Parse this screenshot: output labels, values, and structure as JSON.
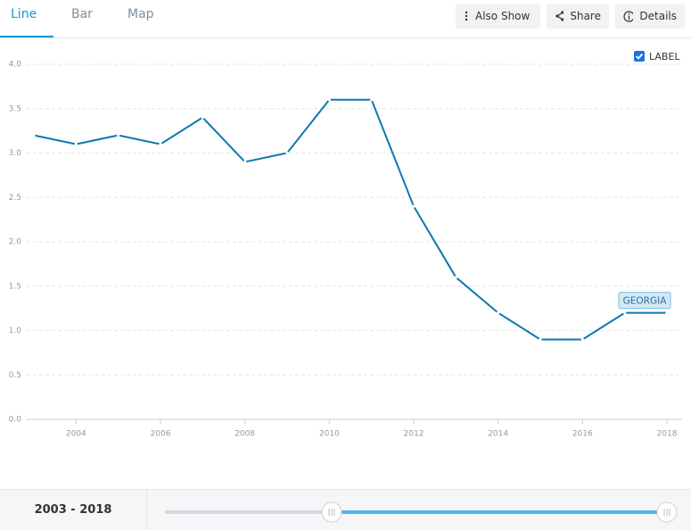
{
  "tabs": [
    "Line",
    "Bar",
    "Map"
  ],
  "actions": [
    "Also Show",
    "Share",
    "Details"
  ],
  "label_toggle": "LABEL",
  "range_label": "2003 - 2018",
  "chart_data": {
    "type": "line",
    "x": [
      2003,
      2004,
      2005,
      2006,
      2007,
      2008,
      2009,
      2010,
      2011,
      2012,
      2013,
      2014,
      2015,
      2016,
      2017,
      2018
    ],
    "series": [
      {
        "name": "GEORGIA",
        "color": "#0c77b0",
        "values": [
          3.2,
          3.1,
          3.2,
          3.1,
          3.4,
          2.9,
          3.0,
          3.6,
          3.6,
          2.4,
          1.6,
          1.2,
          0.9,
          0.9,
          1.2,
          1.2
        ]
      }
    ],
    "xlim": [
      2003,
      2018
    ],
    "xticks": [
      2004,
      2006,
      2008,
      2010,
      2012,
      2014,
      2016,
      2018
    ],
    "ylim": [
      0,
      4
    ],
    "yticks": [
      {
        "value": 0,
        "label": "0.0"
      },
      0.5,
      {
        "value": 1,
        "label": "1.0"
      },
      1.5,
      {
        "value": 2,
        "label": "2.0"
      },
      2.5,
      {
        "value": 3,
        "label": "3.0"
      },
      3.5,
      {
        "value": 4,
        "label": "4.0"
      }
    ],
    "grid": true
  }
}
